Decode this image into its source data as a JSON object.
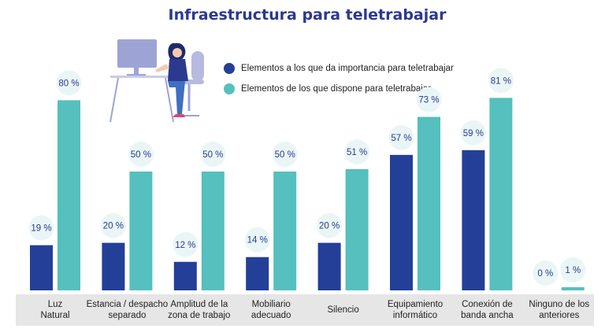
{
  "title": "Infraestructura para teletrabajar",
  "colors": {
    "importance": "#233f97",
    "available": "#55c0bd",
    "label_bubble": "#eaf6f6",
    "axis_band": "#e6e6e6",
    "title": "#2b3990"
  },
  "chart_data": {
    "type": "bar",
    "categories": [
      [
        "Luz",
        "Natural"
      ],
      [
        "Estancia / despacho",
        "separado"
      ],
      [
        "Amplitud de la",
        "zona de trabajo"
      ],
      [
        "Mobiliario",
        "adecuado"
      ],
      [
        "Silencio"
      ],
      [
        "Equipamiento",
        "informático"
      ],
      [
        "Conexión de",
        "banda ancha"
      ],
      [
        "Ninguno de los",
        "anteriores"
      ]
    ],
    "series": [
      {
        "name": "Elementos a los que da importancia para teletrabajar",
        "values": [
          19,
          20,
          12,
          14,
          20,
          57,
          59,
          0
        ],
        "labels": [
          "19 %",
          "20 %",
          "12 %",
          "14 %",
          "20 %",
          "57 %",
          "59 %",
          "0 %"
        ]
      },
      {
        "name": "Elementos de los que dispone para teletrabajar",
        "values": [
          80,
          50,
          50,
          50,
          51,
          73,
          81,
          1
        ],
        "labels": [
          "80 %",
          "50 %",
          "50 %",
          "50 %",
          "51 %",
          "73 %",
          "81 %",
          "1 %"
        ]
      }
    ],
    "ylim": [
      0,
      100
    ],
    "legend_position": "top-center"
  }
}
